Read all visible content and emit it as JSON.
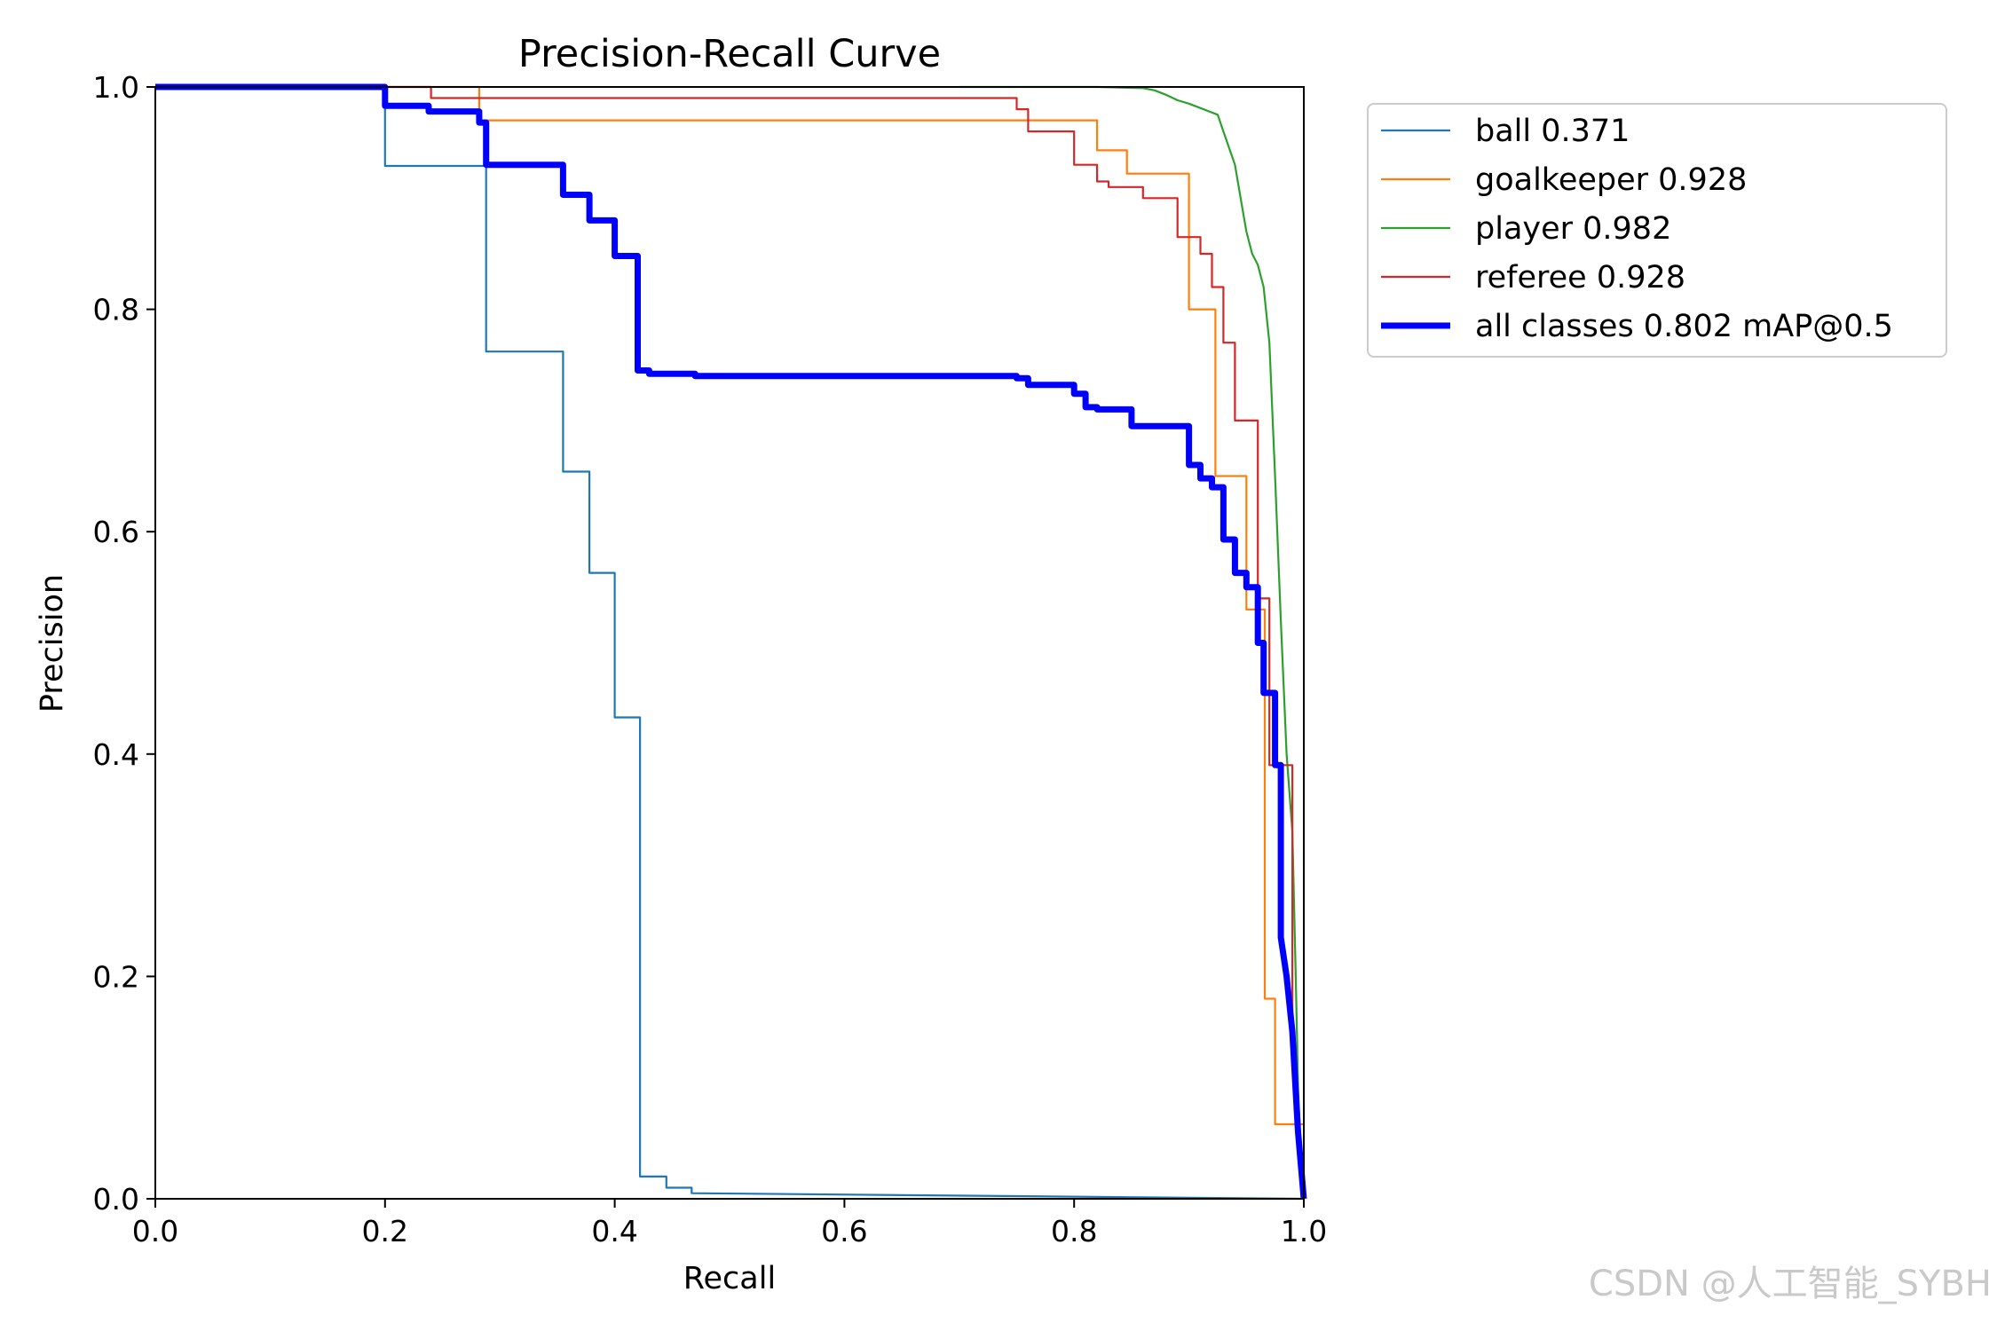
{
  "watermark": "CSDN @人工智能_SYBH",
  "chart_data": {
    "type": "line",
    "title": "Precision-Recall Curve",
    "xlabel": "Recall",
    "ylabel": "Precision",
    "xlim": [
      0,
      1
    ],
    "ylim": [
      0,
      1
    ],
    "xticks": [
      "0.0",
      "0.2",
      "0.4",
      "0.6",
      "0.8",
      "1.0"
    ],
    "yticks": [
      "0.0",
      "0.2",
      "0.4",
      "0.6",
      "0.8",
      "1.0"
    ],
    "grid": false,
    "legend_position": "outside-upper-right",
    "series": [
      {
        "key": "ball",
        "name": "ball 0.371",
        "color": "#1f77b4",
        "style": "thin",
        "x": [
          0,
          0.2,
          0.2,
          0.288,
          0.288,
          0.355,
          0.355,
          0.378,
          0.378,
          0.4,
          0.4,
          0.422,
          0.422,
          0.445,
          0.445,
          0.467,
          0.467,
          1.0
        ],
        "y": [
          1.0,
          1.0,
          0.929,
          0.929,
          0.762,
          0.762,
          0.654,
          0.654,
          0.563,
          0.563,
          0.433,
          0.433,
          0.02,
          0.02,
          0.01,
          0.01,
          0.005,
          0.0
        ]
      },
      {
        "key": "goalkeeper",
        "name": "goalkeeper 0.928",
        "color": "#ff7f0e",
        "style": "thin",
        "x": [
          0,
          0.282,
          0.282,
          0.82,
          0.82,
          0.846,
          0.846,
          0.9,
          0.9,
          0.923,
          0.923,
          0.95,
          0.95,
          0.966,
          0.966,
          0.975,
          0.975,
          1.0
        ],
        "y": [
          1.0,
          1.0,
          0.97,
          0.97,
          0.943,
          0.943,
          0.922,
          0.922,
          0.8,
          0.8,
          0.65,
          0.65,
          0.53,
          0.53,
          0.18,
          0.18,
          0.067,
          0.067
        ]
      },
      {
        "key": "player",
        "name": "player 0.982",
        "color": "#2ca02c",
        "style": "thin",
        "x": [
          0.7,
          0.82,
          0.86,
          0.87,
          0.88,
          0.89,
          0.9,
          0.925,
          0.93,
          0.94,
          0.945,
          0.95,
          0.955,
          0.96,
          0.965,
          0.97,
          0.975,
          0.98,
          0.985,
          0.99,
          0.993,
          0.995,
          0.997,
          1.0
        ],
        "y": [
          1.0,
          1.0,
          0.999,
          0.997,
          0.993,
          0.988,
          0.985,
          0.975,
          0.96,
          0.93,
          0.9,
          0.87,
          0.85,
          0.84,
          0.82,
          0.77,
          0.65,
          0.52,
          0.4,
          0.33,
          0.2,
          0.1,
          0.05,
          0.0
        ]
      },
      {
        "key": "referee",
        "name": "referee 0.928",
        "color": "#d62728",
        "style": "thin",
        "x": [
          0,
          0.24,
          0.24,
          0.75,
          0.75,
          0.76,
          0.76,
          0.8,
          0.8,
          0.82,
          0.82,
          0.83,
          0.83,
          0.86,
          0.86,
          0.89,
          0.89,
          0.91,
          0.91,
          0.92,
          0.92,
          0.93,
          0.93,
          0.94,
          0.94,
          0.96,
          0.96,
          0.97,
          0.97,
          0.99,
          0.99,
          1.0
        ],
        "y": [
          1.0,
          1.0,
          0.99,
          0.99,
          0.98,
          0.98,
          0.96,
          0.96,
          0.93,
          0.93,
          0.915,
          0.915,
          0.91,
          0.91,
          0.9,
          0.9,
          0.865,
          0.865,
          0.85,
          0.85,
          0.82,
          0.82,
          0.77,
          0.77,
          0.7,
          0.7,
          0.54,
          0.54,
          0.39,
          0.39,
          0.155,
          0.0
        ]
      },
      {
        "key": "all",
        "name": "all classes 0.802 mAP@0.5",
        "color": "#0000ff",
        "style": "thick",
        "x": [
          0,
          0.2,
          0.2,
          0.238,
          0.238,
          0.282,
          0.282,
          0.288,
          0.288,
          0.355,
          0.355,
          0.378,
          0.378,
          0.4,
          0.4,
          0.42,
          0.42,
          0.43,
          0.43,
          0.47,
          0.47,
          0.75,
          0.75,
          0.76,
          0.76,
          0.8,
          0.8,
          0.81,
          0.81,
          0.82,
          0.82,
          0.85,
          0.85,
          0.9,
          0.9,
          0.91,
          0.91,
          0.92,
          0.92,
          0.93,
          0.93,
          0.94,
          0.94,
          0.95,
          0.95,
          0.96,
          0.96,
          0.965,
          0.965,
          0.975,
          0.975,
          0.98,
          0.98,
          0.985,
          0.99,
          0.995,
          1.0
        ],
        "y": [
          1.0,
          1.0,
          0.983,
          0.983,
          0.978,
          0.978,
          0.968,
          0.968,
          0.93,
          0.93,
          0.903,
          0.903,
          0.88,
          0.88,
          0.848,
          0.848,
          0.745,
          0.745,
          0.742,
          0.742,
          0.74,
          0.74,
          0.738,
          0.738,
          0.732,
          0.732,
          0.724,
          0.724,
          0.712,
          0.712,
          0.71,
          0.71,
          0.695,
          0.695,
          0.66,
          0.66,
          0.648,
          0.648,
          0.64,
          0.64,
          0.593,
          0.593,
          0.563,
          0.563,
          0.55,
          0.55,
          0.5,
          0.5,
          0.455,
          0.455,
          0.39,
          0.39,
          0.235,
          0.2,
          0.15,
          0.06,
          0.0
        ]
      }
    ]
  }
}
